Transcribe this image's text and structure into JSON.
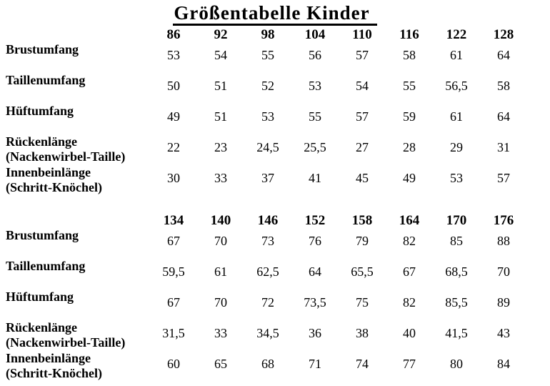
{
  "page": {
    "background_color": "#ffffff",
    "text_color": "#000000"
  },
  "title": "Größentabelle Kinder",
  "table": {
    "blocks": [
      {
        "sizes": [
          "86",
          "92",
          "98",
          "104",
          "110",
          "116",
          "122",
          "128"
        ],
        "rows": [
          {
            "label": [
              "Brustumfang"
            ],
            "values": [
              "53",
              "54",
              "55",
              "56",
              "57",
              "58",
              "61",
              "64"
            ]
          },
          {
            "label": [
              "Taillenumfang"
            ],
            "values": [
              "50",
              "51",
              "52",
              "53",
              "54",
              "55",
              "56,5",
              "58"
            ]
          },
          {
            "label": [
              "Hüftumfang"
            ],
            "values": [
              "49",
              "51",
              "53",
              "55",
              "57",
              "59",
              "61",
              "64"
            ]
          },
          {
            "label": [
              "Rückenlänge",
              "(Nackenwirbel-Taille)"
            ],
            "values": [
              "22",
              "23",
              "24,5",
              "25,5",
              "27",
              "28",
              "29",
              "31"
            ]
          },
          {
            "label": [
              "Innenbeinlänge",
              "(Schritt-Knöchel)"
            ],
            "values": [
              "30",
              "33",
              "37",
              "41",
              "45",
              "49",
              "53",
              "57"
            ]
          }
        ]
      },
      {
        "sizes": [
          "134",
          "140",
          "146",
          "152",
          "158",
          "164",
          "170",
          "176"
        ],
        "rows": [
          {
            "label": [
              "Brustumfang"
            ],
            "values": [
              "67",
              "70",
              "73",
              "76",
              "79",
              "82",
              "85",
              "88"
            ]
          },
          {
            "label": [
              "Taillenumfang"
            ],
            "values": [
              "59,5",
              "61",
              "62,5",
              "64",
              "65,5",
              "67",
              "68,5",
              "70"
            ]
          },
          {
            "label": [
              "Hüftumfang"
            ],
            "values": [
              "67",
              "70",
              "72",
              "73,5",
              "75",
              "82",
              "85,5",
              "89"
            ]
          },
          {
            "label": [
              "Rückenlänge",
              "(Nackenwirbel-Taille)"
            ],
            "values": [
              "31,5",
              "33",
              "34,5",
              "36",
              "38",
              "40",
              "41,5",
              "43"
            ]
          },
          {
            "label": [
              "Innenbeinlänge",
              "(Schritt-Knöchel)"
            ],
            "values": [
              "60",
              "65",
              "68",
              "71",
              "74",
              "77",
              "80",
              "84"
            ]
          }
        ]
      }
    ]
  }
}
